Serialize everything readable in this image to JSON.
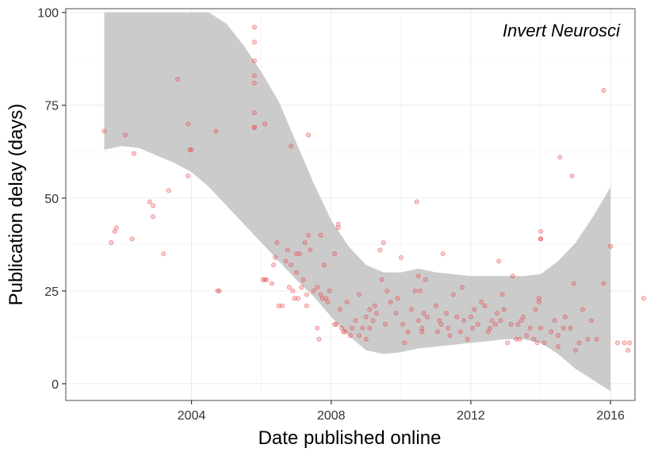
{
  "chart_data": {
    "type": "scatter",
    "xlabel": "Date published online",
    "ylabel": "Publication delay (days)",
    "annotation": "Invert Neurosci",
    "xlim": [
      2000.4,
      2016.7
    ],
    "ylim": [
      -4.5,
      101
    ],
    "x_ticks": [
      2004,
      2008,
      2012,
      2016
    ],
    "x_tick_labels": [
      "2004",
      "2008",
      "2012",
      "2016"
    ],
    "y_ticks": [
      0,
      25,
      50,
      75,
      100
    ],
    "y_tick_labels": [
      "0",
      "25",
      "50",
      "75",
      "100"
    ],
    "grid": true,
    "point_color": "#e8474a",
    "band_color": "#bdbdbd",
    "series": [
      {
        "points": [
          [
            2001.5,
            68
          ],
          [
            2001.7,
            38
          ],
          [
            2001.8,
            41
          ],
          [
            2001.85,
            42
          ],
          [
            2002.1,
            67
          ],
          [
            2002.3,
            39
          ],
          [
            2002.35,
            62
          ],
          [
            2002.8,
            49
          ],
          [
            2002.9,
            48
          ],
          [
            2002.9,
            45
          ],
          [
            2003.2,
            35
          ],
          [
            2003.35,
            52
          ],
          [
            2003.6,
            82
          ],
          [
            2003.9,
            56
          ],
          [
            2003.9,
            70
          ],
          [
            2003.95,
            63
          ],
          [
            2004.0,
            63
          ],
          [
            2004.7,
            68
          ],
          [
            2004.75,
            25
          ],
          [
            2004.8,
            25
          ],
          [
            2005.8,
            96
          ],
          [
            2005.8,
            92
          ],
          [
            2005.8,
            87
          ],
          [
            2005.8,
            83
          ],
          [
            2005.8,
            81
          ],
          [
            2005.8,
            73
          ],
          [
            2005.8,
            69
          ],
          [
            2005.8,
            69
          ],
          [
            2006.05,
            28
          ],
          [
            2006.1,
            70
          ],
          [
            2006.1,
            28
          ],
          [
            2006.15,
            28
          ],
          [
            2006.3,
            27
          ],
          [
            2006.35,
            32
          ],
          [
            2006.4,
            34
          ],
          [
            2006.45,
            38
          ],
          [
            2006.5,
            21
          ],
          [
            2006.6,
            21
          ],
          [
            2006.7,
            33
          ],
          [
            2006.75,
            36
          ],
          [
            2006.8,
            26
          ],
          [
            2006.85,
            32
          ],
          [
            2006.85,
            64
          ],
          [
            2006.9,
            25
          ],
          [
            2006.95,
            23
          ],
          [
            2007.0,
            30
          ],
          [
            2007.0,
            35
          ],
          [
            2007.05,
            23
          ],
          [
            2007.1,
            35
          ],
          [
            2007.15,
            26
          ],
          [
            2007.2,
            28
          ],
          [
            2007.25,
            38
          ],
          [
            2007.3,
            21
          ],
          [
            2007.3,
            24
          ],
          [
            2007.35,
            40
          ],
          [
            2007.35,
            67
          ],
          [
            2007.4,
            36
          ],
          [
            2007.5,
            25
          ],
          [
            2007.6,
            15
          ],
          [
            2007.6,
            26
          ],
          [
            2007.65,
            12
          ],
          [
            2007.7,
            24
          ],
          [
            2007.7,
            40
          ],
          [
            2007.75,
            23
          ],
          [
            2007.8,
            32
          ],
          [
            2007.85,
            23
          ],
          [
            2007.9,
            22
          ],
          [
            2007.95,
            25
          ],
          [
            2008.1,
            16
          ],
          [
            2008.1,
            35
          ],
          [
            2008.15,
            16
          ],
          [
            2008.2,
            43
          ],
          [
            2008.2,
            42
          ],
          [
            2008.25,
            20
          ],
          [
            2008.3,
            15
          ],
          [
            2008.35,
            14
          ],
          [
            2008.4,
            14
          ],
          [
            2008.45,
            22
          ],
          [
            2008.55,
            13
          ],
          [
            2008.6,
            15
          ],
          [
            2008.7,
            17
          ],
          [
            2008.8,
            24
          ],
          [
            2008.8,
            13
          ],
          [
            2008.9,
            15
          ],
          [
            2009.0,
            12
          ],
          [
            2009.0,
            18
          ],
          [
            2009.1,
            15
          ],
          [
            2009.1,
            20
          ],
          [
            2009.2,
            17
          ],
          [
            2009.25,
            21
          ],
          [
            2009.3,
            19
          ],
          [
            2009.4,
            36
          ],
          [
            2009.45,
            28
          ],
          [
            2009.5,
            38
          ],
          [
            2009.55,
            16
          ],
          [
            2009.6,
            25
          ],
          [
            2009.7,
            22
          ],
          [
            2009.85,
            19
          ],
          [
            2009.9,
            23
          ],
          [
            2010.0,
            34
          ],
          [
            2010.05,
            16
          ],
          [
            2010.1,
            11
          ],
          [
            2010.2,
            14
          ],
          [
            2010.3,
            20
          ],
          [
            2010.4,
            25
          ],
          [
            2010.45,
            49
          ],
          [
            2010.5,
            29
          ],
          [
            2010.5,
            17
          ],
          [
            2010.55,
            25
          ],
          [
            2010.6,
            15
          ],
          [
            2010.6,
            14
          ],
          [
            2010.65,
            19
          ],
          [
            2010.7,
            28
          ],
          [
            2010.75,
            18
          ],
          [
            2011.0,
            21
          ],
          [
            2011.05,
            14
          ],
          [
            2011.1,
            17
          ],
          [
            2011.15,
            16
          ],
          [
            2011.2,
            35
          ],
          [
            2011.3,
            19
          ],
          [
            2011.35,
            15
          ],
          [
            2011.4,
            13
          ],
          [
            2011.5,
            24
          ],
          [
            2011.6,
            18
          ],
          [
            2011.7,
            14
          ],
          [
            2011.75,
            26
          ],
          [
            2011.8,
            17
          ],
          [
            2011.9,
            12
          ],
          [
            2012.0,
            18
          ],
          [
            2012.05,
            15
          ],
          [
            2012.1,
            20
          ],
          [
            2012.2,
            16
          ],
          [
            2012.3,
            22
          ],
          [
            2012.4,
            21
          ],
          [
            2012.5,
            14
          ],
          [
            2012.55,
            15
          ],
          [
            2012.6,
            17
          ],
          [
            2012.7,
            16
          ],
          [
            2012.75,
            19
          ],
          [
            2012.8,
            33
          ],
          [
            2012.85,
            17
          ],
          [
            2012.9,
            24
          ],
          [
            2012.95,
            20
          ],
          [
            2013.05,
            11
          ],
          [
            2013.15,
            16
          ],
          [
            2013.2,
            29
          ],
          [
            2013.3,
            12
          ],
          [
            2013.35,
            16
          ],
          [
            2013.4,
            12
          ],
          [
            2013.45,
            17
          ],
          [
            2013.5,
            18
          ],
          [
            2013.6,
            13
          ],
          [
            2013.7,
            15
          ],
          [
            2013.8,
            12
          ],
          [
            2013.85,
            20
          ],
          [
            2013.9,
            11
          ],
          [
            2013.95,
            23
          ],
          [
            2013.95,
            22
          ],
          [
            2014.0,
            41
          ],
          [
            2014.0,
            39
          ],
          [
            2014.0,
            39
          ],
          [
            2014.0,
            15
          ],
          [
            2014.1,
            11
          ],
          [
            2014.3,
            14
          ],
          [
            2014.4,
            17
          ],
          [
            2014.5,
            10
          ],
          [
            2014.5,
            13
          ],
          [
            2014.55,
            61
          ],
          [
            2014.65,
            15
          ],
          [
            2014.7,
            18
          ],
          [
            2014.85,
            15
          ],
          [
            2014.9,
            56
          ],
          [
            2014.95,
            27
          ],
          [
            2015.0,
            9
          ],
          [
            2015.1,
            11
          ],
          [
            2015.2,
            20
          ],
          [
            2015.35,
            12
          ],
          [
            2015.45,
            17
          ],
          [
            2015.6,
            12
          ],
          [
            2015.8,
            79
          ],
          [
            2015.8,
            27
          ],
          [
            2016.0,
            37
          ],
          [
            2016.2,
            11
          ],
          [
            2016.4,
            11
          ],
          [
            2016.5,
            9
          ],
          [
            2016.55,
            11
          ],
          [
            2016.95,
            23
          ]
        ]
      }
    ],
    "confidence_band": {
      "x": [
        2001.5,
        2002.0,
        2002.5,
        2003.0,
        2003.5,
        2004.0,
        2004.5,
        2005.0,
        2005.5,
        2006.0,
        2006.5,
        2007.0,
        2007.5,
        2008.0,
        2008.5,
        2009.0,
        2009.5,
        2010.0,
        2010.5,
        2011.0,
        2011.5,
        2012.0,
        2012.5,
        2013.0,
        2013.5,
        2014.0,
        2014.5,
        2015.0,
        2015.5,
        2016.0
      ],
      "lower": [
        63,
        64,
        63.5,
        61.5,
        59.5,
        57,
        53,
        48,
        43,
        38,
        33,
        28,
        23.5,
        18,
        13,
        9,
        8,
        8.5,
        9.5,
        10,
        10.5,
        11,
        11.5,
        12,
        12,
        11,
        8,
        4,
        1,
        -2
      ],
      "upper": [
        100,
        100,
        100,
        100,
        100,
        100,
        100,
        97,
        91,
        84,
        76,
        65,
        54,
        44,
        37,
        32,
        30,
        30,
        31,
        30,
        29.5,
        29,
        29,
        29,
        29,
        29.5,
        33,
        38,
        45,
        53
      ]
    }
  }
}
